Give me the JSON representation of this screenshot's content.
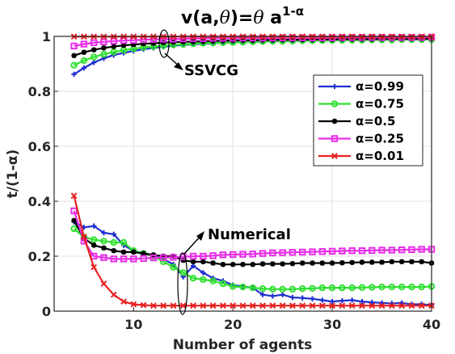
{
  "chart_data": {
    "type": "line",
    "title": "v(a,θ)=θ a^(1-α)",
    "title_parts": {
      "main": "v(a,",
      "theta1": "θ",
      "mid": ")=",
      "theta2": "θ",
      "a": " a",
      "sup": "1-α"
    },
    "xlabel": "Number of agents",
    "ylabel": "t/(1-α)",
    "xlim": [
      2,
      40
    ],
    "ylim": [
      0,
      1
    ],
    "xticks": [
      10,
      20,
      30,
      40
    ],
    "xtick_labels": [
      "10",
      "20",
      "30",
      "40"
    ],
    "yticks": [
      0,
      0.2,
      0.4,
      0.6,
      0.8,
      1
    ],
    "ytick_labels": [
      "0",
      "0.2",
      "0.4",
      "0.6",
      "0.8",
      "1"
    ],
    "grid": true,
    "legend_position": "right",
    "annotations": [
      {
        "text": "SSVCG"
      },
      {
        "text": "Numerical"
      }
    ],
    "series": [
      {
        "name": "α=0.99",
        "color": "#1f2fcf",
        "marker": "plus",
        "group": "SSVCG",
        "x": [
          4,
          5,
          6,
          7,
          8,
          9,
          10,
          11,
          12,
          13,
          14,
          15,
          16,
          17,
          18,
          19,
          20,
          21,
          22,
          23,
          24,
          25,
          26,
          27,
          28,
          29,
          30,
          31,
          32,
          33,
          34,
          35,
          36,
          37,
          38,
          39,
          40
        ],
        "y": [
          0.862,
          0.885,
          0.905,
          0.92,
          0.932,
          0.94,
          0.947,
          0.953,
          0.958,
          0.962,
          0.966,
          0.969,
          0.971,
          0.973,
          0.975,
          0.977,
          0.978,
          0.979,
          0.98,
          0.981,
          0.982,
          0.983,
          0.984,
          0.984,
          0.985,
          0.986,
          0.986,
          0.987,
          0.987,
          0.988,
          0.988,
          0.988,
          0.989,
          0.989,
          0.989,
          0.99,
          0.99
        ]
      },
      {
        "name": "α=0.75",
        "color": "#2ee02e",
        "marker": "circle",
        "group": "SSVCG",
        "x": [
          4,
          5,
          6,
          7,
          8,
          9,
          10,
          11,
          12,
          13,
          14,
          15,
          16,
          17,
          18,
          19,
          20,
          21,
          22,
          23,
          24,
          25,
          26,
          27,
          28,
          29,
          30,
          31,
          32,
          33,
          34,
          35,
          36,
          37,
          38,
          39,
          40
        ],
        "y": [
          0.895,
          0.912,
          0.925,
          0.935,
          0.943,
          0.95,
          0.955,
          0.96,
          0.963,
          0.966,
          0.969,
          0.971,
          0.973,
          0.975,
          0.976,
          0.977,
          0.978,
          0.979,
          0.98,
          0.981,
          0.982,
          0.982,
          0.983,
          0.984,
          0.984,
          0.985,
          0.985,
          0.986,
          0.986,
          0.986,
          0.987,
          0.987,
          0.987,
          0.988,
          0.988,
          0.988,
          0.988
        ]
      },
      {
        "name": "α=0.5",
        "color": "#000000",
        "marker": "asterisk",
        "group": "SSVCG",
        "x": [
          4,
          5,
          6,
          7,
          8,
          9,
          10,
          11,
          12,
          13,
          14,
          15,
          16,
          17,
          18,
          19,
          20,
          21,
          22,
          23,
          24,
          25,
          26,
          27,
          28,
          29,
          30,
          31,
          32,
          33,
          34,
          35,
          36,
          37,
          38,
          39,
          40
        ],
        "y": [
          0.93,
          0.942,
          0.951,
          0.958,
          0.963,
          0.967,
          0.97,
          0.973,
          0.975,
          0.977,
          0.979,
          0.98,
          0.981,
          0.982,
          0.983,
          0.984,
          0.985,
          0.986,
          0.986,
          0.987,
          0.987,
          0.988,
          0.988,
          0.988,
          0.989,
          0.989,
          0.989,
          0.99,
          0.99,
          0.99,
          0.99,
          0.991,
          0.991,
          0.991,
          0.991,
          0.991,
          0.992
        ]
      },
      {
        "name": "α=0.25",
        "color": "#e62ee6",
        "marker": "square",
        "group": "SSVCG",
        "x": [
          4,
          5,
          6,
          7,
          8,
          9,
          10,
          11,
          12,
          13,
          14,
          15,
          16,
          17,
          18,
          19,
          20,
          21,
          22,
          23,
          24,
          25,
          26,
          27,
          28,
          29,
          30,
          31,
          32,
          33,
          34,
          35,
          36,
          37,
          38,
          39,
          40
        ],
        "y": [
          0.965,
          0.972,
          0.977,
          0.98,
          0.983,
          0.985,
          0.986,
          0.988,
          0.989,
          0.99,
          0.99,
          0.991,
          0.992,
          0.992,
          0.993,
          0.993,
          0.993,
          0.994,
          0.994,
          0.994,
          0.994,
          0.995,
          0.995,
          0.995,
          0.995,
          0.995,
          0.995,
          0.996,
          0.996,
          0.996,
          0.996,
          0.996,
          0.996,
          0.996,
          0.996,
          0.996,
          0.997
        ]
      },
      {
        "name": "α=0.01",
        "color": "#e62020",
        "marker": "x",
        "group": "SSVCG",
        "x": [
          4,
          5,
          6,
          7,
          8,
          9,
          10,
          11,
          12,
          13,
          14,
          15,
          16,
          17,
          18,
          19,
          20,
          21,
          22,
          23,
          24,
          25,
          26,
          27,
          28,
          29,
          30,
          31,
          32,
          33,
          34,
          35,
          36,
          37,
          38,
          39,
          40
        ],
        "y": [
          0.999,
          0.999,
          0.999,
          0.999,
          0.999,
          0.999,
          0.999,
          0.999,
          0.999,
          0.999,
          0.999,
          0.999,
          0.999,
          0.999,
          0.999,
          0.999,
          0.999,
          0.999,
          0.999,
          0.999,
          0.999,
          0.999,
          0.999,
          0.999,
          0.999,
          0.999,
          0.999,
          0.999,
          0.999,
          0.999,
          0.999,
          0.999,
          0.999,
          0.999,
          0.999,
          0.999,
          0.999
        ]
      },
      {
        "name": "α=0.99",
        "color": "#1f2fcf",
        "marker": "plus",
        "group": "Numerical",
        "x": [
          4,
          5,
          6,
          7,
          8,
          9,
          10,
          11,
          12,
          13,
          14,
          15,
          16,
          17,
          18,
          19,
          20,
          21,
          22,
          23,
          24,
          25,
          26,
          27,
          28,
          29,
          30,
          31,
          32,
          33,
          34,
          35,
          36,
          37,
          38,
          39,
          40
        ],
        "y": [
          0.325,
          0.305,
          0.31,
          0.285,
          0.28,
          0.24,
          0.22,
          0.21,
          0.2,
          0.19,
          0.17,
          0.125,
          0.165,
          0.14,
          0.12,
          0.11,
          0.095,
          0.09,
          0.085,
          0.06,
          0.055,
          0.06,
          0.05,
          0.048,
          0.045,
          0.04,
          0.035,
          0.038,
          0.04,
          0.035,
          0.032,
          0.03,
          0.028,
          0.03,
          0.025,
          0.025,
          0.022
        ]
      },
      {
        "name": "α=0.75",
        "color": "#2ee02e",
        "marker": "circle",
        "group": "Numerical",
        "x": [
          4,
          5,
          6,
          7,
          8,
          9,
          10,
          11,
          12,
          13,
          14,
          15,
          16,
          17,
          18,
          19,
          20,
          21,
          22,
          23,
          24,
          25,
          26,
          27,
          28,
          29,
          30,
          31,
          32,
          33,
          34,
          35,
          36,
          37,
          38,
          39,
          40
        ],
        "y": [
          0.3,
          0.27,
          0.26,
          0.255,
          0.25,
          0.25,
          0.22,
          0.21,
          0.2,
          0.18,
          0.16,
          0.14,
          0.12,
          0.115,
          0.11,
          0.1,
          0.09,
          0.088,
          0.085,
          0.082,
          0.08,
          0.08,
          0.08,
          0.082,
          0.083,
          0.085,
          0.085,
          0.085,
          0.085,
          0.086,
          0.087,
          0.088,
          0.088,
          0.088,
          0.088,
          0.088,
          0.09
        ]
      },
      {
        "name": "α=0.5",
        "color": "#000000",
        "marker": "asterisk",
        "group": "Numerical",
        "x": [
          4,
          5,
          6,
          7,
          8,
          9,
          10,
          11,
          12,
          13,
          14,
          15,
          16,
          17,
          18,
          19,
          20,
          21,
          22,
          23,
          24,
          25,
          26,
          27,
          28,
          29,
          30,
          31,
          32,
          33,
          34,
          35,
          36,
          37,
          38,
          39,
          40
        ],
        "y": [
          0.33,
          0.265,
          0.24,
          0.23,
          0.22,
          0.215,
          0.215,
          0.21,
          0.205,
          0.2,
          0.2,
          0.185,
          0.18,
          0.18,
          0.175,
          0.17,
          0.17,
          0.17,
          0.17,
          0.172,
          0.172,
          0.172,
          0.173,
          0.175,
          0.175,
          0.175,
          0.175,
          0.176,
          0.177,
          0.178,
          0.178,
          0.178,
          0.18,
          0.18,
          0.18,
          0.18,
          0.175
        ]
      },
      {
        "name": "α=0.25",
        "color": "#e62ee6",
        "marker": "square",
        "group": "Numerical",
        "x": [
          4,
          5,
          6,
          7,
          8,
          9,
          10,
          11,
          12,
          13,
          14,
          15,
          16,
          17,
          18,
          19,
          20,
          21,
          22,
          23,
          24,
          25,
          26,
          27,
          28,
          29,
          30,
          31,
          32,
          33,
          34,
          35,
          36,
          37,
          38,
          39,
          40
        ],
        "y": [
          0.365,
          0.255,
          0.2,
          0.195,
          0.19,
          0.19,
          0.19,
          0.192,
          0.194,
          0.195,
          0.196,
          0.198,
          0.2,
          0.2,
          0.202,
          0.205,
          0.206,
          0.207,
          0.208,
          0.21,
          0.212,
          0.213,
          0.214,
          0.215,
          0.216,
          0.217,
          0.218,
          0.219,
          0.22,
          0.22,
          0.221,
          0.222,
          0.222,
          0.223,
          0.224,
          0.225,
          0.225
        ]
      },
      {
        "name": "α=0.01",
        "color": "#e62020",
        "marker": "x",
        "group": "Numerical",
        "x": [
          4,
          5,
          6,
          7,
          8,
          9,
          10,
          11,
          12,
          13,
          14,
          15,
          16,
          17,
          18,
          19,
          20,
          21,
          22,
          23,
          24,
          25,
          26,
          27,
          28,
          29,
          30,
          31,
          32,
          33,
          34,
          35,
          36,
          37,
          38,
          39,
          40
        ],
        "y": [
          0.42,
          0.27,
          0.16,
          0.1,
          0.06,
          0.035,
          0.025,
          0.022,
          0.02,
          0.02,
          0.02,
          0.02,
          0.02,
          0.02,
          0.02,
          0.02,
          0.02,
          0.02,
          0.02,
          0.02,
          0.02,
          0.02,
          0.02,
          0.02,
          0.02,
          0.02,
          0.02,
          0.02,
          0.02,
          0.02,
          0.02,
          0.02,
          0.02,
          0.02,
          0.02,
          0.02,
          0.02
        ]
      }
    ],
    "legend": [
      {
        "label": "α=0.99",
        "color": "#1f2fcf",
        "marker": "plus"
      },
      {
        "label": "α=0.75",
        "color": "#2ee02e",
        "marker": "circle"
      },
      {
        "label": "α=0.5",
        "color": "#000000",
        "marker": "asterisk"
      },
      {
        "label": "α=0.25",
        "color": "#e62ee6",
        "marker": "square"
      },
      {
        "label": "α=0.01",
        "color": "#e62020",
        "marker": "x"
      }
    ]
  }
}
